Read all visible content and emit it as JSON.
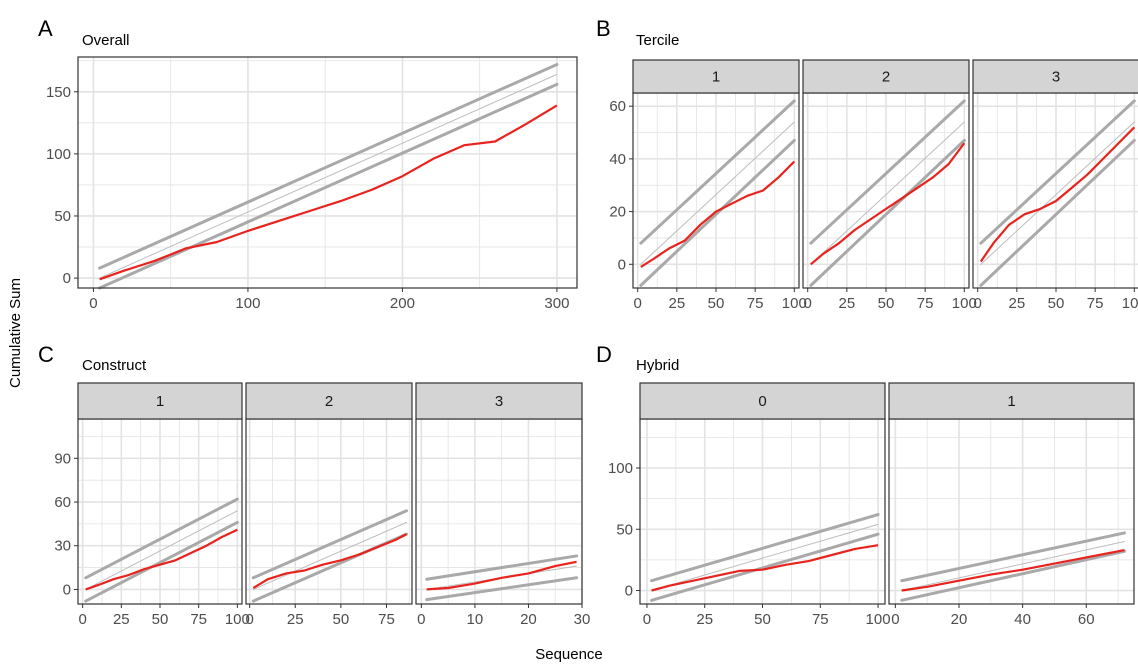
{
  "figure": {
    "ylabel": "Cumulative Sum",
    "xlabel": "Sequence"
  },
  "colors": {
    "cusum_line": "#e8231d",
    "limit_lines": "#a9a9a9",
    "center_line": "#bdbdbd",
    "grid": "#e3e3e3",
    "strip_fill": "#d4d4d4",
    "panel_border": "#333333"
  },
  "chart_data": [
    {
      "letter": "A",
      "title": "Overall",
      "type": "line",
      "grid": true,
      "facets": [
        {
          "strip": "",
          "xlim": [
            -10,
            313
          ],
          "ylim": [
            -8,
            178
          ],
          "xticks": [
            0,
            100,
            200,
            300
          ],
          "yticks": [
            0,
            50,
            100,
            150
          ],
          "upper": [
            [
              4,
              8
            ],
            [
              300,
              172
            ]
          ],
          "center": [
            [
              4,
              0
            ],
            [
              300,
              164
            ]
          ],
          "lower": [
            [
              4,
              -8
            ],
            [
              300,
              156
            ]
          ],
          "series": [
            {
              "x": [
                4,
                20,
                40,
                60,
                80,
                100,
                120,
                140,
                160,
                180,
                200,
                220,
                240,
                260,
                280,
                300
              ],
              "y": [
                -1,
                6,
                14,
                24,
                29,
                38,
                46,
                54,
                62,
                71,
                82,
                96,
                107,
                110,
                124,
                139
              ]
            }
          ]
        }
      ]
    },
    {
      "letter": "B",
      "title": "Tercile",
      "type": "line",
      "grid": true,
      "facets": [
        {
          "strip": "1",
          "xlim": [
            -3,
            103
          ],
          "ylim": [
            -9,
            65
          ],
          "xticks": [
            0,
            25,
            50,
            75,
            100
          ],
          "yticks": [
            0,
            20,
            40,
            60
          ],
          "upper": [
            [
              2,
              8
            ],
            [
              100,
              62
            ]
          ],
          "center": [
            [
              2,
              0
            ],
            [
              100,
              54
            ]
          ],
          "lower": [
            [
              2,
              -8
            ],
            [
              100,
              47
            ]
          ],
          "series": [
            {
              "x": [
                2,
                10,
                20,
                30,
                40,
                50,
                60,
                70,
                80,
                90,
                100
              ],
              "y": [
                -1,
                2,
                6,
                9,
                15,
                20,
                23,
                26,
                28,
                33,
                39
              ]
            }
          ]
        },
        {
          "strip": "2",
          "xlim": [
            -3,
            103
          ],
          "ylim": [
            -9,
            65
          ],
          "xticks": [
            0,
            25,
            50,
            75,
            100
          ],
          "yticks": [
            0,
            20,
            40,
            60
          ],
          "upper": [
            [
              2,
              8
            ],
            [
              100,
              62
            ]
          ],
          "center": [
            [
              2,
              0
            ],
            [
              100,
              54
            ]
          ],
          "lower": [
            [
              2,
              -8
            ],
            [
              100,
              47
            ]
          ],
          "series": [
            {
              "x": [
                2,
                10,
                20,
                30,
                40,
                50,
                60,
                70,
                80,
                90,
                100
              ],
              "y": [
                0,
                4,
                8,
                13,
                17,
                21,
                25,
                29,
                33,
                38,
                46
              ]
            }
          ]
        },
        {
          "strip": "3",
          "xlim": [
            -3,
            103
          ],
          "ylim": [
            -9,
            65
          ],
          "xticks": [
            0,
            25,
            50,
            75,
            100
          ],
          "yticks": [
            0,
            20,
            40,
            60
          ],
          "upper": [
            [
              2,
              8
            ],
            [
              100,
              62
            ]
          ],
          "center": [
            [
              2,
              0
            ],
            [
              100,
              54
            ]
          ],
          "lower": [
            [
              2,
              -8
            ],
            [
              100,
              47
            ]
          ],
          "series": [
            {
              "x": [
                2,
                10,
                20,
                30,
                40,
                50,
                60,
                70,
                80,
                90,
                100
              ],
              "y": [
                1,
                8,
                15,
                19,
                21,
                24,
                29,
                34,
                40,
                46,
                52
              ]
            }
          ]
        }
      ]
    },
    {
      "letter": "C",
      "title": "Construct",
      "type": "line",
      "grid": true,
      "facets": [
        {
          "strip": "1",
          "xlim": [
            -3,
            103
          ],
          "ylim": [
            -10,
            117
          ],
          "xticks": [
            0,
            25,
            50,
            75,
            100
          ],
          "yticks": [
            0,
            30,
            60,
            90
          ],
          "upper": [
            [
              2,
              8
            ],
            [
              100,
              62
            ]
          ],
          "center": [
            [
              2,
              0
            ],
            [
              100,
              54
            ]
          ],
          "lower": [
            [
              2,
              -8
            ],
            [
              100,
              46
            ]
          ],
          "series": [
            {
              "x": [
                2,
                10,
                20,
                30,
                40,
                50,
                60,
                70,
                80,
                90,
                100
              ],
              "y": [
                0,
                3,
                7,
                10,
                14,
                17,
                20,
                25,
                30,
                36,
                41
              ]
            }
          ]
        },
        {
          "strip": "2",
          "xlim": [
            -2,
            89
          ],
          "ylim": [
            -10,
            117
          ],
          "xticks": [
            0,
            25,
            50,
            75
          ],
          "yticks": [
            0,
            30,
            60,
            90
          ],
          "upper": [
            [
              2,
              8
            ],
            [
              86,
              54
            ]
          ],
          "center": [
            [
              2,
              0
            ],
            [
              86,
              46
            ]
          ],
          "lower": [
            [
              2,
              -8
            ],
            [
              86,
              38
            ]
          ],
          "series": [
            {
              "x": [
                2,
                10,
                20,
                30,
                40,
                50,
                60,
                70,
                80,
                86
              ],
              "y": [
                1,
                7,
                11,
                13,
                17,
                20,
                24,
                29,
                34,
                38
              ]
            }
          ]
        },
        {
          "strip": "3",
          "xlim": [
            -1,
            30
          ],
          "ylim": [
            -10,
            117
          ],
          "xticks": [
            0,
            10,
            20,
            30
          ],
          "yticks": [
            0,
            30,
            60,
            90
          ],
          "upper": [
            [
              1,
              7
            ],
            [
              29,
              23
            ]
          ],
          "center": [
            [
              1,
              0
            ],
            [
              29,
              16
            ]
          ],
          "lower": [
            [
              1,
              -7
            ],
            [
              29,
              8
            ]
          ],
          "series": [
            {
              "x": [
                1,
                5,
                10,
                15,
                20,
                25,
                29
              ],
              "y": [
                0,
                1,
                4,
                8,
                11,
                16,
                19
              ]
            }
          ]
        }
      ]
    },
    {
      "letter": "D",
      "title": "Hybrid",
      "type": "line",
      "grid": true,
      "facets": [
        {
          "strip": "0",
          "xlim": [
            -3,
            103
          ],
          "ylim": [
            -11,
            140
          ],
          "xticks": [
            0,
            25,
            50,
            75,
            100
          ],
          "yticks": [
            0,
            50,
            100
          ],
          "upper": [
            [
              2,
              8
            ],
            [
              100,
              62
            ]
          ],
          "center": [
            [
              2,
              0
            ],
            [
              100,
              54
            ]
          ],
          "lower": [
            [
              2,
              -8
            ],
            [
              100,
              46
            ]
          ],
          "series": [
            {
              "x": [
                2,
                10,
                20,
                30,
                40,
                50,
                60,
                70,
                80,
                90,
                100
              ],
              "y": [
                0,
                4,
                8,
                12,
                16,
                17,
                21,
                24,
                29,
                34,
                37
              ]
            }
          ]
        },
        {
          "strip": "1",
          "xlim": [
            -2,
            75
          ],
          "ylim": [
            -11,
            140
          ],
          "xticks": [
            0,
            20,
            40,
            60
          ],
          "yticks": [
            0,
            50,
            100
          ],
          "upper": [
            [
              2,
              8
            ],
            [
              72,
              47
            ]
          ],
          "center": [
            [
              2,
              0
            ],
            [
              72,
              40
            ]
          ],
          "lower": [
            [
              2,
              -8
            ],
            [
              72,
              32
            ]
          ],
          "series": [
            {
              "x": [
                2,
                10,
                20,
                30,
                40,
                50,
                60,
                72
              ],
              "y": [
                0,
                3,
                8,
                13,
                17,
                22,
                27,
                33
              ]
            }
          ]
        }
      ]
    }
  ]
}
